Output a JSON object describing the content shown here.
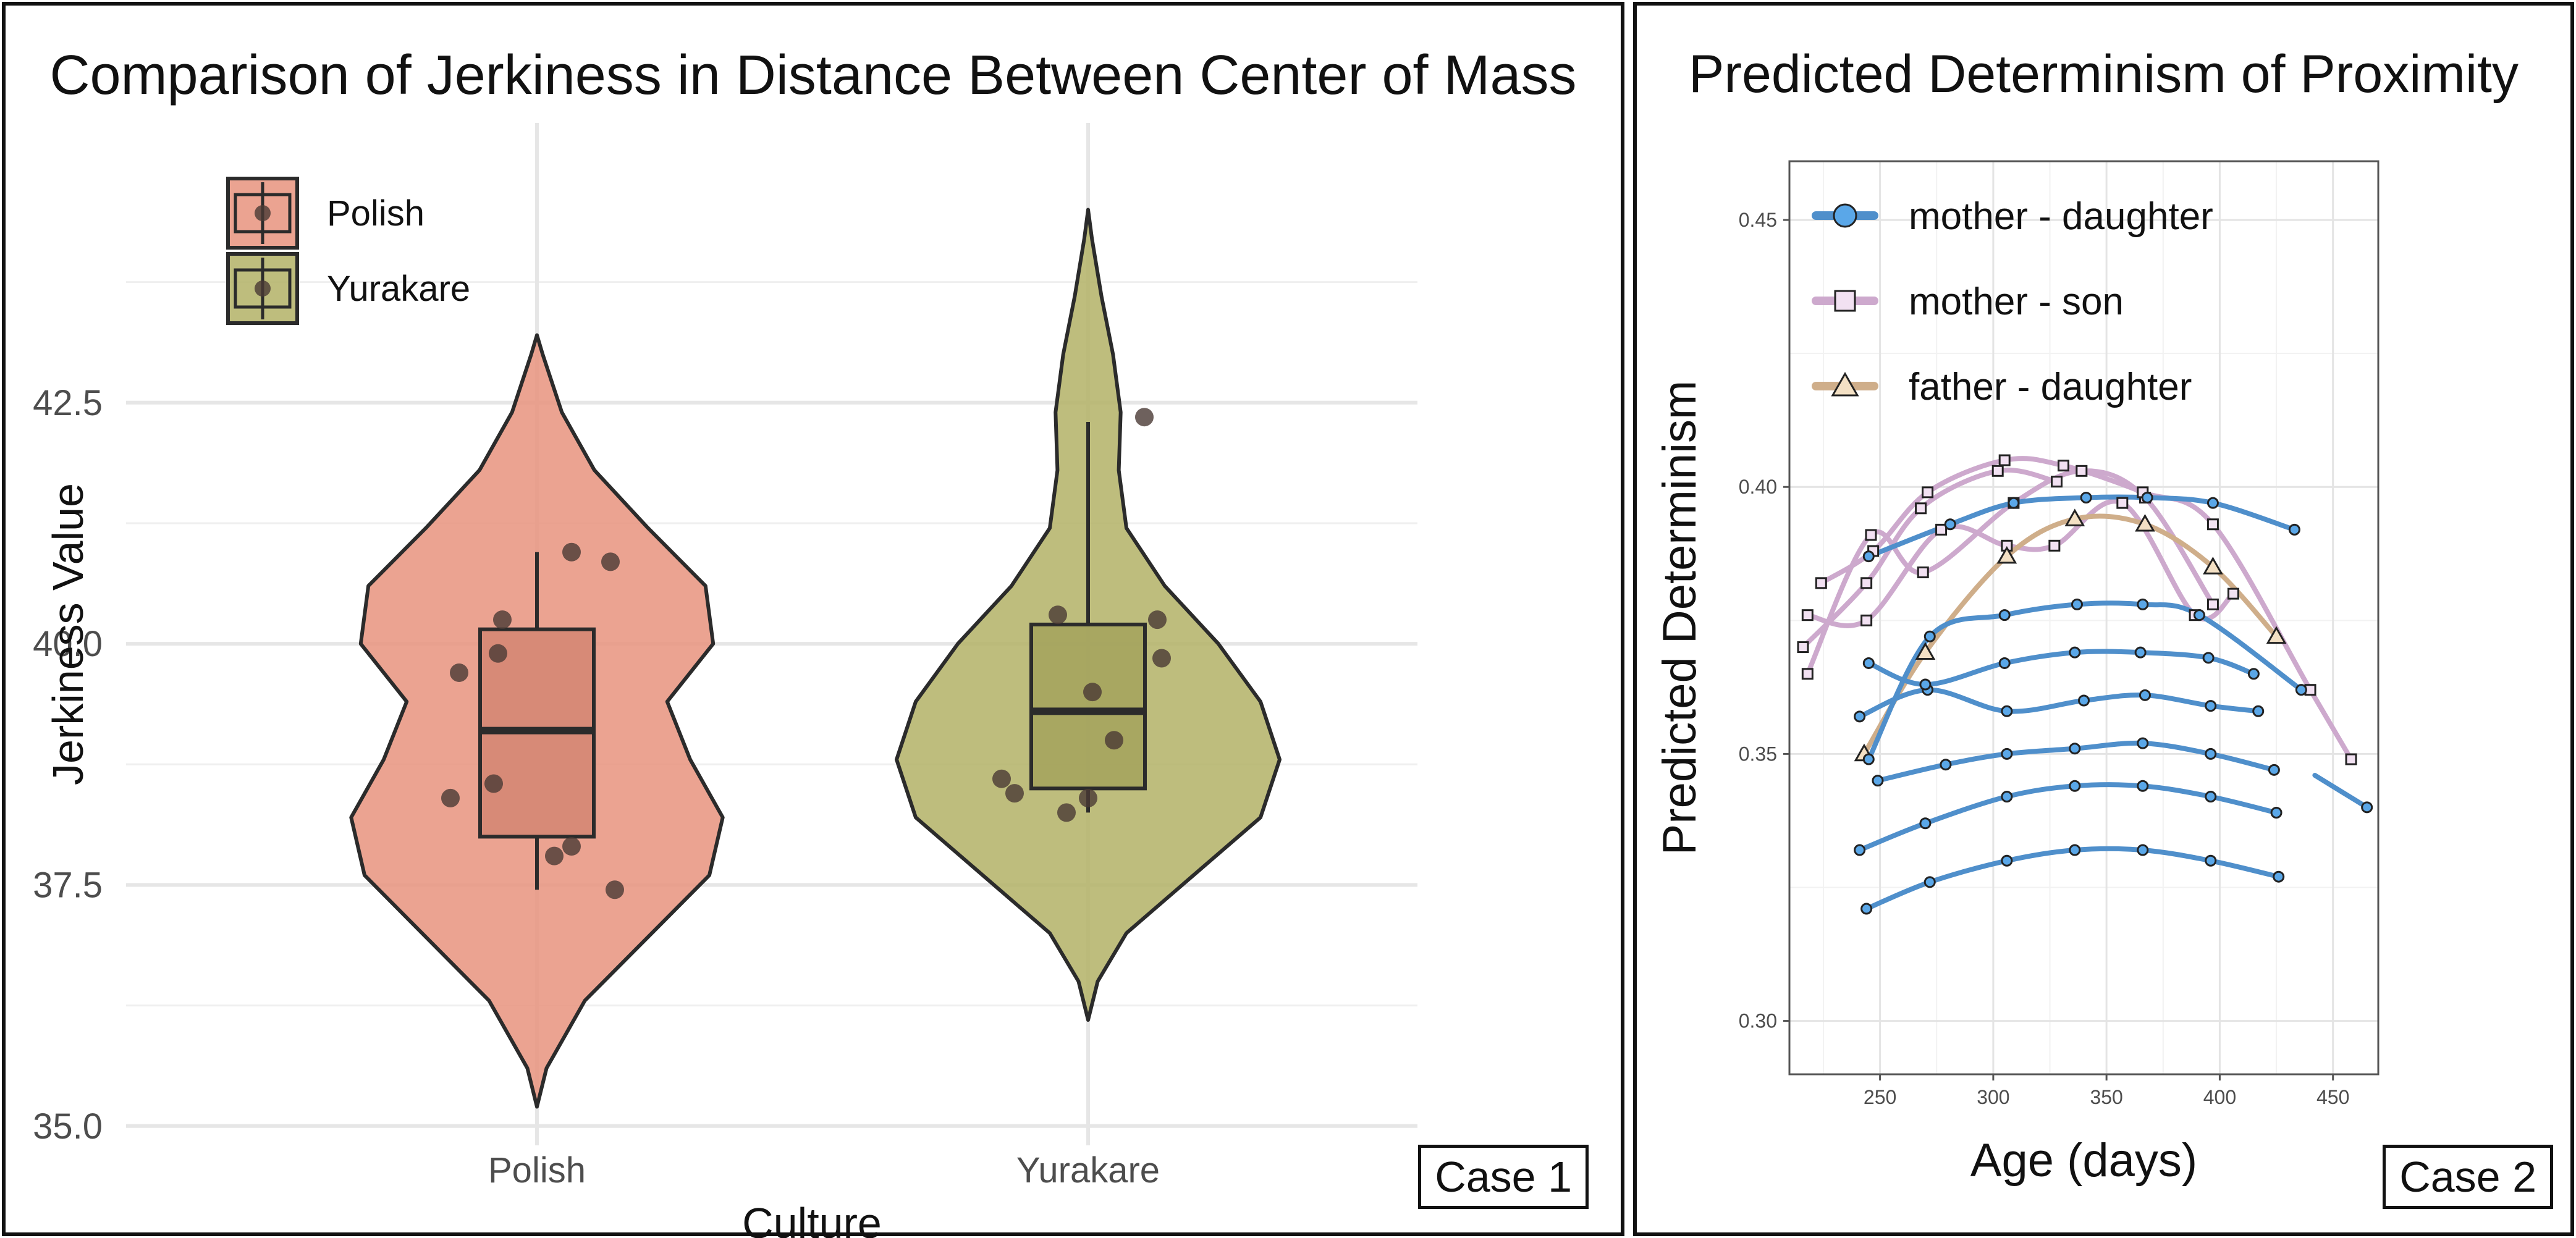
{
  "chart_data": [
    {
      "type": "violin",
      "title": "Comparison of Jerkiness in Distance Between Center of Mass",
      "xlabel": "Culture",
      "ylabel": "Jerkiness Value",
      "ylim": [
        34.8,
        45.4
      ],
      "yticks": [
        "35.0",
        "37.5",
        "40.0",
        "42.5"
      ],
      "grid": true,
      "legend_position": "top-left",
      "categories": [
        "Polish",
        "Yurakare"
      ],
      "colors": [
        "#E8937E",
        "#B3B266"
      ],
      "series": [
        {
          "name": "Polish",
          "box": {
            "q1": 38.0,
            "median": 39.1,
            "q3": 40.15,
            "whisker_low": 37.45,
            "whisker_high": 40.95
          },
          "violin_range": [
            35.2,
            43.2
          ],
          "points": [
            {
              "x": -0.2,
              "y": 38.4
            },
            {
              "x": -0.18,
              "y": 39.7
            },
            {
              "x": -0.1,
              "y": 38.55
            },
            {
              "x": -0.09,
              "y": 39.9
            },
            {
              "x": -0.08,
              "y": 40.25
            },
            {
              "x": 0.04,
              "y": 37.8
            },
            {
              "x": 0.08,
              "y": 37.9
            },
            {
              "x": 0.08,
              "y": 40.95
            },
            {
              "x": 0.17,
              "y": 40.85
            },
            {
              "x": 0.18,
              "y": 37.45
            }
          ]
        },
        {
          "name": "Yurakare",
          "box": {
            "q1": 38.5,
            "median": 39.3,
            "q3": 40.2,
            "whisker_low": 38.25,
            "whisker_high": 42.3
          },
          "violin_range": [
            36.1,
            44.5
          ],
          "points": [
            {
              "x": -0.2,
              "y": 38.6
            },
            {
              "x": -0.17,
              "y": 38.45
            },
            {
              "x": -0.07,
              "y": 40.3
            },
            {
              "x": -0.05,
              "y": 38.25
            },
            {
              "x": 0.0,
              "y": 38.4
            },
            {
              "x": 0.01,
              "y": 39.5
            },
            {
              "x": 0.06,
              "y": 39.0
            },
            {
              "x": 0.13,
              "y": 42.35
            },
            {
              "x": 0.16,
              "y": 40.25
            },
            {
              "x": 0.17,
              "y": 39.85
            }
          ]
        }
      ]
    },
    {
      "type": "line",
      "title": "Predicted Determinism of Proximity",
      "xlabel": "Age (days)",
      "ylabel": "Predicted Determinism",
      "xlim": [
        210,
        470
      ],
      "ylim": [
        0.29,
        0.461
      ],
      "xticks": [
        "250",
        "300",
        "350",
        "400",
        "450"
      ],
      "yticks": [
        "0.30",
        "0.35",
        "0.40",
        "0.45"
      ],
      "grid": true,
      "legend_position": "top-left",
      "legend": [
        "mother - daughter",
        "mother - son",
        "father - daughter"
      ],
      "colors": {
        "mother - daughter": "#4F8FCB",
        "mother - son": "#CDA9CD",
        "father - daughter": "#CFAE8A"
      },
      "series": [
        {
          "name": "mother - daughter",
          "x": [
            244,
            272,
            306,
            336,
            366,
            396,
            426
          ],
          "y": [
            0.321,
            0.326,
            0.33,
            0.332,
            0.332,
            0.33,
            0.327
          ]
        },
        {
          "name": "mother - daughter",
          "x": [
            241,
            270,
            306,
            336,
            366,
            396,
            425
          ],
          "y": [
            0.332,
            0.337,
            0.342,
            0.344,
            0.344,
            0.342,
            0.339
          ]
        },
        {
          "name": "mother - daughter",
          "x": [
            249,
            279,
            306,
            336,
            366,
            396,
            424
          ],
          "y": [
            0.345,
            0.348,
            0.35,
            0.351,
            0.352,
            0.35,
            0.347
          ]
        },
        {
          "name": "mother - daughter",
          "x": [
            241,
            271,
            306,
            340,
            367,
            396,
            417
          ],
          "y": [
            0.357,
            0.362,
            0.358,
            0.36,
            0.361,
            0.359,
            0.358
          ]
        },
        {
          "name": "mother - daughter",
          "x": [
            245,
            270,
            305,
            336,
            365,
            395,
            415
          ],
          "y": [
            0.367,
            0.363,
            0.367,
            0.369,
            0.369,
            0.368,
            0.365
          ]
        },
        {
          "name": "mother - daughter",
          "x": [
            245,
            272,
            305,
            337,
            366,
            391,
            436
          ],
          "y": [
            0.349,
            0.372,
            0.376,
            0.378,
            0.378,
            0.376,
            0.362
          ]
        },
        {
          "name": "mother - daughter",
          "x": [
            245,
            281,
            309,
            341,
            368,
            397,
            433
          ],
          "y": [
            0.387,
            0.393,
            0.397,
            0.398,
            0.398,
            0.397,
            0.392
          ]
        },
        {
          "name": "mother - daughter",
          "x": [
            442,
            465
          ],
          "y": [
            0.346,
            0.34
          ]
        },
        {
          "name": "mother - son",
          "x": [
            216,
            244,
            268,
            302,
            328
          ],
          "y": [
            0.37,
            0.382,
            0.396,
            0.403,
            0.401
          ]
        },
        {
          "name": "mother - son",
          "x": [
            218,
            246,
            269,
            309,
            339,
            367,
            397
          ],
          "y": [
            0.365,
            0.391,
            0.384,
            0.397,
            0.403,
            0.398,
            0.378
          ]
        },
        {
          "name": "mother - son",
          "x": [
            218,
            244,
            277,
            306,
            327,
            357,
            389,
            406
          ],
          "y": [
            0.376,
            0.375,
            0.392,
            0.389,
            0.389,
            0.397,
            0.376,
            0.38
          ]
        },
        {
          "name": "mother - son",
          "x": [
            224,
            247,
            271,
            305,
            331,
            366,
            397,
            440,
            458
          ],
          "y": [
            0.382,
            0.388,
            0.399,
            0.405,
            0.404,
            0.399,
            0.393,
            0.362,
            0.349
          ]
        },
        {
          "name": "father - daughter",
          "x": [
            243,
            270,
            306,
            336,
            367,
            397,
            425
          ],
          "y": [
            0.35,
            0.369,
            0.387,
            0.394,
            0.393,
            0.385,
            0.372
          ]
        }
      ]
    }
  ],
  "panels": {
    "case1": "Case 1",
    "case2": "Case 2"
  }
}
